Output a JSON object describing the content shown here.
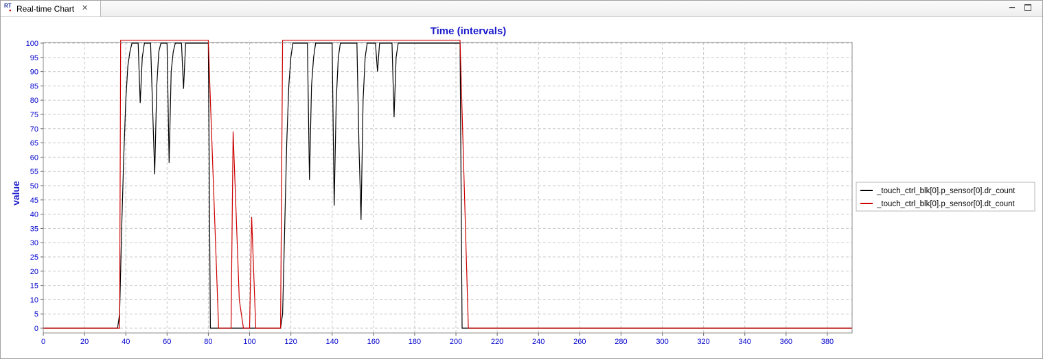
{
  "tab": {
    "label": "Real-time Chart",
    "icon": "realtime-chart-icon",
    "icon_text": "RT"
  },
  "window_controls": {
    "minimize_icon": "minimize-icon",
    "maximize_icon": "maximize-icon",
    "close_icon": "close-icon"
  },
  "chart_data": {
    "type": "line",
    "title": "Time (intervals)",
    "xlabel": "",
    "ylabel": "value",
    "xlim": [
      0,
      392
    ],
    "ylim": [
      0,
      100
    ],
    "x_ticks": [
      0,
      20,
      40,
      60,
      80,
      100,
      120,
      140,
      160,
      180,
      200,
      220,
      240,
      260,
      280,
      300,
      320,
      340,
      360,
      380
    ],
    "y_ticks": [
      0,
      5,
      10,
      15,
      20,
      25,
      30,
      35,
      40,
      45,
      50,
      55,
      60,
      65,
      70,
      75,
      80,
      85,
      90,
      95,
      100
    ],
    "grid": true,
    "legend_position": "right",
    "colors": {
      "axis_text": "#0000cc",
      "title": "#1a1acc",
      "grid": "#c8c8c8"
    },
    "series": [
      {
        "name": "_touch_ctrl_blk[0].p_sensor[0].dr_count",
        "color": "#000000",
        "points": [
          [
            0,
            0
          ],
          [
            36,
            0
          ],
          [
            37,
            5
          ],
          [
            38,
            35
          ],
          [
            39,
            60
          ],
          [
            40,
            80
          ],
          [
            41,
            92
          ],
          [
            42,
            97
          ],
          [
            43,
            100
          ],
          [
            46,
            100
          ],
          [
            47,
            79
          ],
          [
            48,
            95
          ],
          [
            49,
            100
          ],
          [
            52,
            100
          ],
          [
            54,
            54
          ],
          [
            55,
            85
          ],
          [
            56,
            97
          ],
          [
            57,
            100
          ],
          [
            60,
            100
          ],
          [
            61,
            58
          ],
          [
            62,
            90
          ],
          [
            63,
            97
          ],
          [
            64,
            100
          ],
          [
            67,
            100
          ],
          [
            68,
            84
          ],
          [
            69,
            100
          ],
          [
            80,
            100
          ],
          [
            81,
            0
          ],
          [
            115,
            0
          ],
          [
            116,
            5
          ],
          [
            117,
            35
          ],
          [
            118,
            65
          ],
          [
            119,
            85
          ],
          [
            120,
            95
          ],
          [
            121,
            100
          ],
          [
            128,
            100
          ],
          [
            129,
            52
          ],
          [
            130,
            85
          ],
          [
            131,
            95
          ],
          [
            132,
            100
          ],
          [
            140,
            100
          ],
          [
            141,
            43
          ],
          [
            142,
            80
          ],
          [
            143,
            95
          ],
          [
            144,
            100
          ],
          [
            152,
            100
          ],
          [
            153,
            64
          ],
          [
            154,
            38
          ],
          [
            155,
            80
          ],
          [
            156,
            95
          ],
          [
            157,
            100
          ],
          [
            161,
            100
          ],
          [
            162,
            90
          ],
          [
            163,
            100
          ],
          [
            169,
            100
          ],
          [
            170,
            74
          ],
          [
            171,
            95
          ],
          [
            172,
            100
          ],
          [
            202,
            100
          ],
          [
            203,
            0
          ],
          [
            392,
            0
          ]
        ]
      },
      {
        "name": "_touch_ctrl_blk[0].p_sensor[0].dt_count",
        "color": "#cc0000",
        "points": [
          [
            0,
            0
          ],
          [
            37,
            0
          ],
          [
            37.5,
            101
          ],
          [
            80,
            101
          ],
          [
            81,
            80
          ],
          [
            85,
            0
          ],
          [
            91,
            0
          ],
          [
            92,
            69
          ],
          [
            95,
            10
          ],
          [
            97,
            0
          ],
          [
            100,
            0
          ],
          [
            101,
            39
          ],
          [
            103,
            0
          ],
          [
            115,
            0
          ],
          [
            116,
            101
          ],
          [
            202,
            101
          ],
          [
            206,
            0
          ],
          [
            392,
            0
          ]
        ]
      }
    ]
  }
}
